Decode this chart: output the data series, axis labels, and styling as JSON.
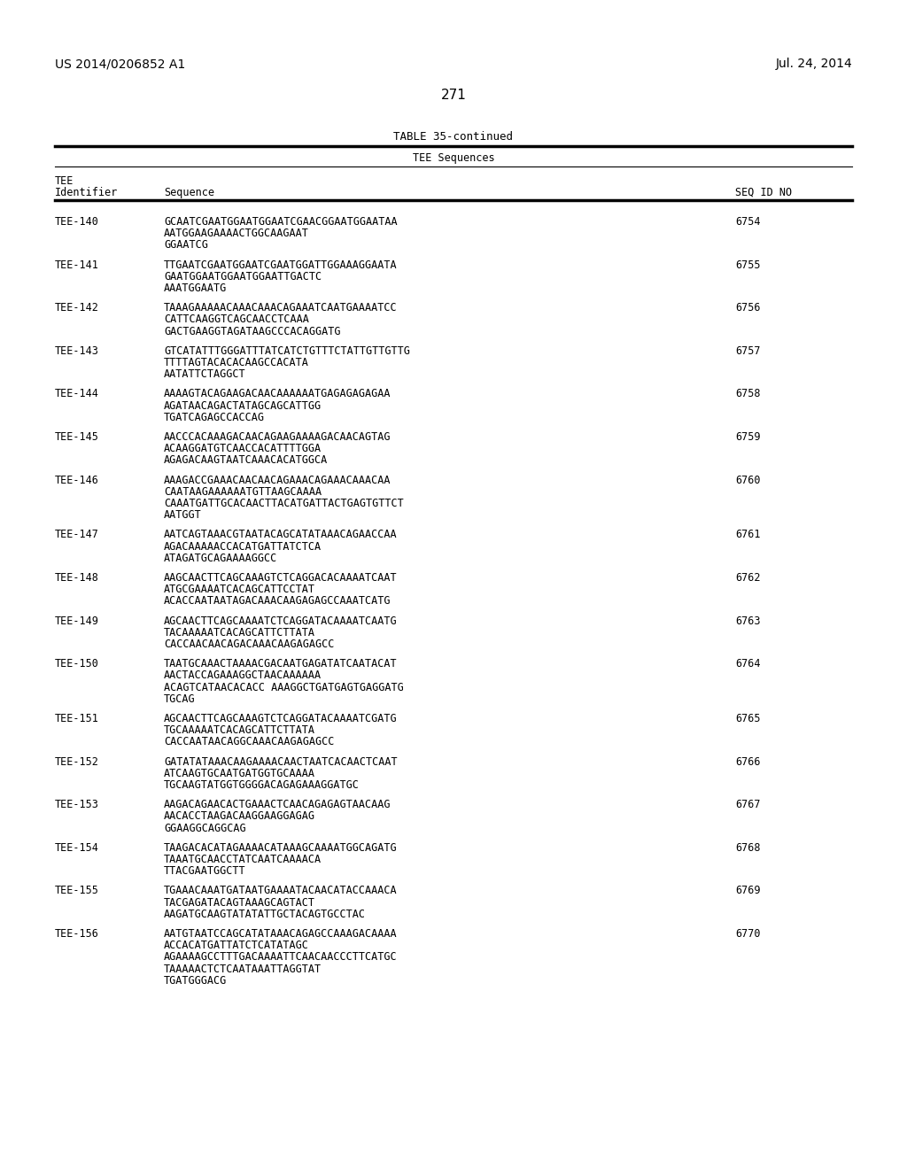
{
  "page_left": "US 2014/0206852 A1",
  "page_right": "Jul. 24, 2014",
  "page_number": "271",
  "table_title": "TABLE 35-continued",
  "col_header_center": "TEE Sequences",
  "col1_header_line1": "TEE",
  "col1_header_line2": "Identifier",
  "col2_header": "Sequence",
  "col3_header": "SEQ ID NO",
  "entries": [
    {
      "id": "TEE-140",
      "seq": "GCAATCGAATGGAATGGAATCGAACGGAATGGAATAA\nAATGGAAGAAAACTGGCAAGAAT\nGGAATCG",
      "seqid": "6754"
    },
    {
      "id": "TEE-141",
      "seq": "TTGAATCGAATGGAATCGAATGGATTGGAAAGGAATA\nGAATGGAATGGAATGGAATTGACTC\nAAATGGAATG",
      "seqid": "6755"
    },
    {
      "id": "TEE-142",
      "seq": "TAAAGAAAAACAAACAAACAGAAATCAATGAAAATCC\nCATTCAAGGTCAGCAACCTCAAA\nGACTGAAGGTAGATAAGCCCACAGGATG",
      "seqid": "6756"
    },
    {
      "id": "TEE-143",
      "seq": "GTCATATTTGGGATTTATCATCTGTTTCTATTGTTGTTG\nTTTTAGTACACACAAGCCACATA\nAATATTCTAGGCT",
      "seqid": "6757"
    },
    {
      "id": "TEE-144",
      "seq": "AAAAGTACAGAAGACAACAAAAAATGAGAGAGAGAA\nAGATAACAGACTATAGCAGCATTGG\nTGATCAGAGCCACCAG",
      "seqid": "6758"
    },
    {
      "id": "TEE-145",
      "seq": "AACCCACAAAGACAACAGAAGAAAAGACAACAGTAG\nACAAGGATGTCAACCACATTTTGGA\nAGAGACAAGTAATCAAACACATGGCA",
      "seqid": "6759"
    },
    {
      "id": "TEE-146",
      "seq": "AAAGACCGAAACAACAACAGAAACAGAAACAAACAA\nCAATAAGAAAAAATGTTAAGCAAAA\nCAAATGATTGCACAACTTACATGATTACTGAGTGTTCT\nAATGGT",
      "seqid": "6760"
    },
    {
      "id": "TEE-147",
      "seq": "AATCAGTAAACGTAATACAGCATATAAACAGAACCAA\nAGACAAAAACCACATGATTATCTCA\nATAGATGCAGAAAAGGCC",
      "seqid": "6761"
    },
    {
      "id": "TEE-148",
      "seq": "AAGCAACTTCAGCAAAGTCTCAGGACACAAAATCAAT\nATGCGAAAATCACAGCATTCCTAT\nACACCAATAATAGACAAACAAGAGAGCCAAATCATG",
      "seqid": "6762"
    },
    {
      "id": "TEE-149",
      "seq": "AGCAACTTCAGCAAAATCTCAGGATACAAAATCAATG\nTACAAAAATCACAGCATTCTTATA\nCACCAACAACAGACAAACAAGAGAGCC",
      "seqid": "6763"
    },
    {
      "id": "TEE-150",
      "seq": "TAATGCAAACTAAAACGACAATGAGATATCAATACAT\nAACTACCAGAAAGGCTAACAAAAAA\nACAGTCATAACACACC AAAGGCTGATGAGTGAGGATG\nTGCAG",
      "seqid": "6764"
    },
    {
      "id": "TEE-151",
      "seq": "AGCAACTTCAGCAAAGTCTCAGGATACAAAATCGATG\nTGCAAAAATCACAGCATTCTTATA\nCACCAATAACAGGCAAACAAGAGAGCC",
      "seqid": "6765"
    },
    {
      "id": "TEE-152",
      "seq": "GATATATAAACAAGAAAACAACTAATCACAACTCAAT\nATCAAGTGCAATGATGGTGCAAAA\nTGCAAGTATGGTGGGGACAGAGAAAGGATGC",
      "seqid": "6766"
    },
    {
      "id": "TEE-153",
      "seq": "AAGACAGAACACTGAAACTCAACAGAGAGTAACAAG\nAACACCTAAGACAAGGAAGGAGAG\nGGAAGGCAGGCAG",
      "seqid": "6767"
    },
    {
      "id": "TEE-154",
      "seq": "TAAGACACATAGAAAACATAAAGCAAAATGGCAGATG\nTAAATGCAACCTATCAATCAAAACA\nTTACGAATGGCTT",
      "seqid": "6768"
    },
    {
      "id": "TEE-155",
      "seq": "TGAAACAAATGATAATGAAAATACAACATACCAAACA\nTACGAGATACAGTAAAGCAGTACT\nAAGATGCAAGTATATATTGCTACAGTGCCTAC",
      "seqid": "6769"
    },
    {
      "id": "TEE-156",
      "seq": "AATGTAATCCAGCATATAAACAGAGCCAAAGACAAAA\nACCACATGATTATCTCATATAGC\nAGAAAAGCCTTTGACAAAATTCAACAACCCTTCATGC\nTAAAAACTCTCAATAAATTAGGTAT\nTGATGGGACG",
      "seqid": "6770"
    }
  ],
  "background_color": "#ffffff",
  "text_color": "#000000"
}
